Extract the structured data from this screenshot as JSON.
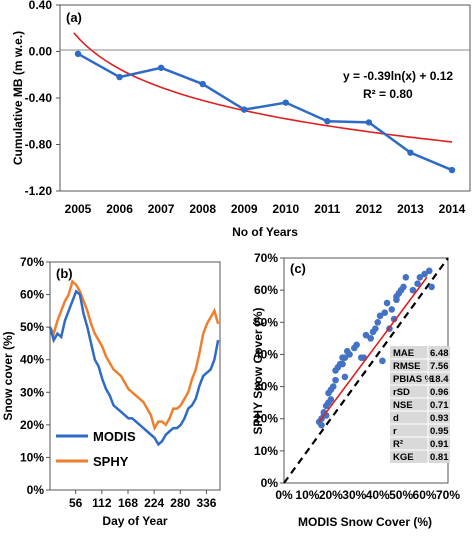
{
  "chart_data": [
    {
      "type": "line",
      "panel_label": "(a)",
      "title": "",
      "xlabel": "No of Years",
      "ylabel": "Cumulative MB (m w.e.)",
      "x": [
        2005,
        2006,
        2007,
        2008,
        2009,
        2010,
        2011,
        2012,
        2013,
        2014
      ],
      "x_tick_labels": [
        "2005",
        "2006",
        "2007",
        "2008",
        "2009",
        "2010",
        "2011",
        "2012",
        "2013",
        "2014"
      ],
      "ylim": [
        -1.2,
        0.4
      ],
      "y_ticks": [
        0.4,
        0.0,
        -0.4,
        -0.8,
        -1.2
      ],
      "y_tick_labels": [
        "0.40",
        "0.00",
        "-0.40",
        "-0.80",
        "-1.20"
      ],
      "series": [
        {
          "values": [
            -0.02,
            -0.22,
            -0.14,
            -0.28,
            -0.5,
            -0.44,
            -0.6,
            -0.61,
            -0.87,
            -1.02
          ],
          "color": "#2e6bc4"
        }
      ],
      "trendline": {
        "type": "log",
        "a": -0.39,
        "b": 0.12,
        "color": "#e01f1f"
      },
      "annotations": [
        "y = -0.39ln(x) + 0.12",
        "R² = 0.80"
      ],
      "grid": false
    },
    {
      "type": "line",
      "panel_label": "(b)",
      "title": "",
      "xlabel": "Day of Year",
      "ylabel": "Snow cover (%)",
      "x_ticks": [
        56,
        112,
        168,
        224,
        280,
        336
      ],
      "x_tick_labels": [
        "56",
        "112",
        "168",
        "224",
        "280",
        "336"
      ],
      "xlim": [
        1,
        365
      ],
      "ylim": [
        0,
        70
      ],
      "y_ticks": [
        0,
        10,
        20,
        30,
        40,
        50,
        60,
        70
      ],
      "y_tick_labels": [
        "0%",
        "10%",
        "20%",
        "30%",
        "40%",
        "50%",
        "60%",
        "70%"
      ],
      "legend": "bottom-left",
      "series": [
        {
          "name": "MODIS",
          "color": "#2e6bc4",
          "x": [
            1,
            9,
            17,
            25,
            33,
            41,
            49,
            57,
            65,
            73,
            81,
            89,
            97,
            105,
            113,
            121,
            129,
            137,
            145,
            153,
            161,
            169,
            177,
            185,
            193,
            201,
            209,
            217,
            225,
            233,
            241,
            249,
            257,
            265,
            273,
            281,
            289,
            297,
            305,
            313,
            321,
            329,
            337,
            345,
            353,
            361
          ],
          "values": [
            50,
            46,
            48,
            47,
            52,
            55,
            58,
            61,
            60,
            54,
            50,
            45,
            40,
            38,
            34,
            31,
            29,
            26,
            25,
            24,
            23,
            22,
            22,
            21,
            20,
            19,
            18,
            17,
            16,
            14,
            15,
            17,
            18,
            19,
            19,
            20,
            22,
            25,
            26,
            28,
            32,
            35,
            36,
            37,
            40,
            46
          ]
        },
        {
          "name": "SPHY",
          "color": "#ef7e2e",
          "x": [
            1,
            9,
            17,
            25,
            33,
            41,
            49,
            57,
            65,
            73,
            81,
            89,
            97,
            105,
            113,
            121,
            129,
            137,
            145,
            153,
            161,
            169,
            177,
            185,
            193,
            201,
            209,
            217,
            225,
            233,
            241,
            249,
            257,
            265,
            273,
            281,
            289,
            297,
            305,
            313,
            321,
            329,
            337,
            345,
            353,
            361
          ],
          "values": [
            50,
            48,
            52,
            55,
            58,
            60,
            64,
            63,
            61,
            58,
            55,
            51,
            48,
            46,
            44,
            41,
            39,
            37,
            36,
            35,
            33,
            31,
            30,
            29,
            28,
            27,
            25,
            23,
            19,
            21,
            21,
            20,
            22,
            25,
            25,
            26,
            28,
            30,
            34,
            37,
            42,
            48,
            51,
            53,
            55,
            51
          ]
        }
      ],
      "grid": false
    },
    {
      "type": "scatter",
      "panel_label": "(c)",
      "title": "",
      "xlabel": "MODIS Snow Cover (%)",
      "ylabel": "SPHY Snow Cover (%)",
      "xlim": [
        0,
        70
      ],
      "ylim": [
        0,
        70
      ],
      "x_ticks": [
        0,
        10,
        20,
        30,
        40,
        50,
        60,
        70
      ],
      "x_tick_labels": [
        "0%",
        "10%",
        "20%",
        "30%",
        "40%",
        "50%",
        "60%",
        "70%"
      ],
      "y_ticks": [
        0,
        10,
        20,
        30,
        40,
        50,
        60,
        70
      ],
      "y_tick_labels": [
        "0%",
        "10%",
        "20%",
        "30%",
        "40%",
        "50%",
        "60%",
        "70%"
      ],
      "points": [
        [
          15,
          19
        ],
        [
          16,
          18
        ],
        [
          16,
          20
        ],
        [
          17,
          21
        ],
        [
          17,
          22
        ],
        [
          18,
          21
        ],
        [
          18,
          24
        ],
        [
          19,
          25
        ],
        [
          19,
          28
        ],
        [
          20,
          29
        ],
        [
          21,
          30
        ],
        [
          22,
          32
        ],
        [
          22,
          35
        ],
        [
          23,
          36
        ],
        [
          24,
          37
        ],
        [
          25,
          37
        ],
        [
          25,
          39
        ],
        [
          26,
          39
        ],
        [
          27,
          41
        ],
        [
          28,
          40
        ],
        [
          30,
          42
        ],
        [
          31,
          43
        ],
        [
          33,
          39
        ],
        [
          34,
          39
        ],
        [
          35,
          46
        ],
        [
          37,
          45
        ],
        [
          38,
          47
        ],
        [
          39,
          48
        ],
        [
          40,
          50
        ],
        [
          41,
          52
        ],
        [
          43,
          53
        ],
        [
          44,
          56
        ],
        [
          46,
          54
        ],
        [
          48,
          57
        ],
        [
          48,
          58
        ],
        [
          49,
          59
        ],
        [
          50,
          60
        ],
        [
          51,
          61
        ],
        [
          52,
          64
        ],
        [
          55,
          60
        ],
        [
          57,
          62
        ],
        [
          58,
          64
        ],
        [
          60,
          65
        ],
        [
          62,
          66
        ],
        [
          63,
          61
        ],
        [
          45,
          48
        ],
        [
          47,
          51
        ],
        [
          20,
          26
        ],
        [
          26,
          33
        ],
        [
          42,
          38
        ]
      ],
      "point_color": "#4472c4",
      "fit_line": {
        "x": [
          15,
          61
        ],
        "y": [
          19,
          64
        ],
        "color": "#e01f1f"
      },
      "reference_line": {
        "x": [
          0,
          70
        ],
        "y": [
          0,
          70
        ],
        "style": "dashed",
        "color": "#000000"
      },
      "stats_table": [
        [
          "MAE",
          "6.48"
        ],
        [
          "RMSE",
          "7.56"
        ],
        [
          "PBIAS %",
          "18.4"
        ],
        [
          "rSD",
          "0.96"
        ],
        [
          "NSE",
          "0.71"
        ],
        [
          "d",
          "0.93"
        ],
        [
          "r",
          "0.95"
        ],
        [
          "R²",
          "0.91"
        ],
        [
          "KGE",
          "0.81"
        ]
      ],
      "grid": false
    }
  ]
}
